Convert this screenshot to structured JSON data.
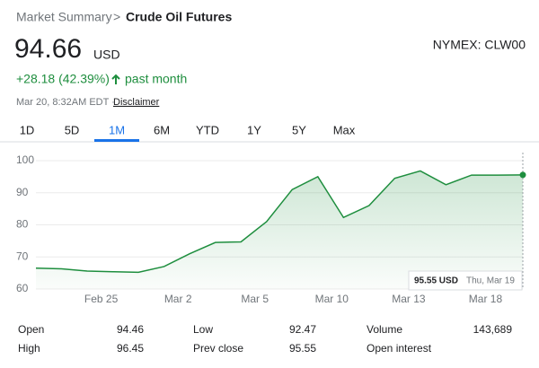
{
  "header": {
    "breadcrumb": "Market Summary",
    "separator": ">",
    "title": "Crude Oil Futures"
  },
  "quote": {
    "price": "94.66",
    "currency": "USD",
    "exchange": "NYMEX: CLW00",
    "change": "+28.18 (42.39%)",
    "period": "past month",
    "timestamp": "Mar 20, 8:32AM EDT ·",
    "disclaimer": "Disclaimer"
  },
  "tabs": {
    "items": [
      "1D",
      "5D",
      "1M",
      "6M",
      "YTD",
      "1Y",
      "5Y",
      "Max"
    ],
    "selected": "1M"
  },
  "chart_data": {
    "type": "line",
    "categories": [
      null,
      null,
      null,
      "Feb 25",
      null,
      null,
      "Mar 2",
      null,
      null,
      "Mar 5",
      null,
      null,
      "Mar 10",
      null,
      null,
      "Mar 13",
      null,
      null,
      "Mar 18",
      null
    ],
    "series": [
      {
        "name": "Crude Oil Futures",
        "color": "#1e8e3e",
        "values": [
          66.5,
          66.3,
          65.6,
          65.4,
          65.2,
          67,
          71,
          74.5,
          74.7,
          81,
          91,
          95,
          82.3,
          86,
          94.5,
          96.8,
          92.5,
          95.5,
          95.5,
          95.55
        ]
      }
    ],
    "ylim": [
      60,
      100
    ],
    "yticks": [
      60,
      70,
      80,
      90,
      100
    ],
    "grid": true,
    "tooltip": {
      "value": "95.55 USD",
      "date": "Thu, Mar 19"
    }
  },
  "stats": {
    "rows": [
      [
        [
          "Open",
          "94.46"
        ],
        [
          "Low",
          "92.47"
        ],
        [
          "Volume",
          "143,689"
        ]
      ],
      [
        [
          "High",
          "96.45"
        ],
        [
          "Prev close",
          "95.55"
        ],
        [
          "Open interest",
          null
        ]
      ]
    ]
  }
}
